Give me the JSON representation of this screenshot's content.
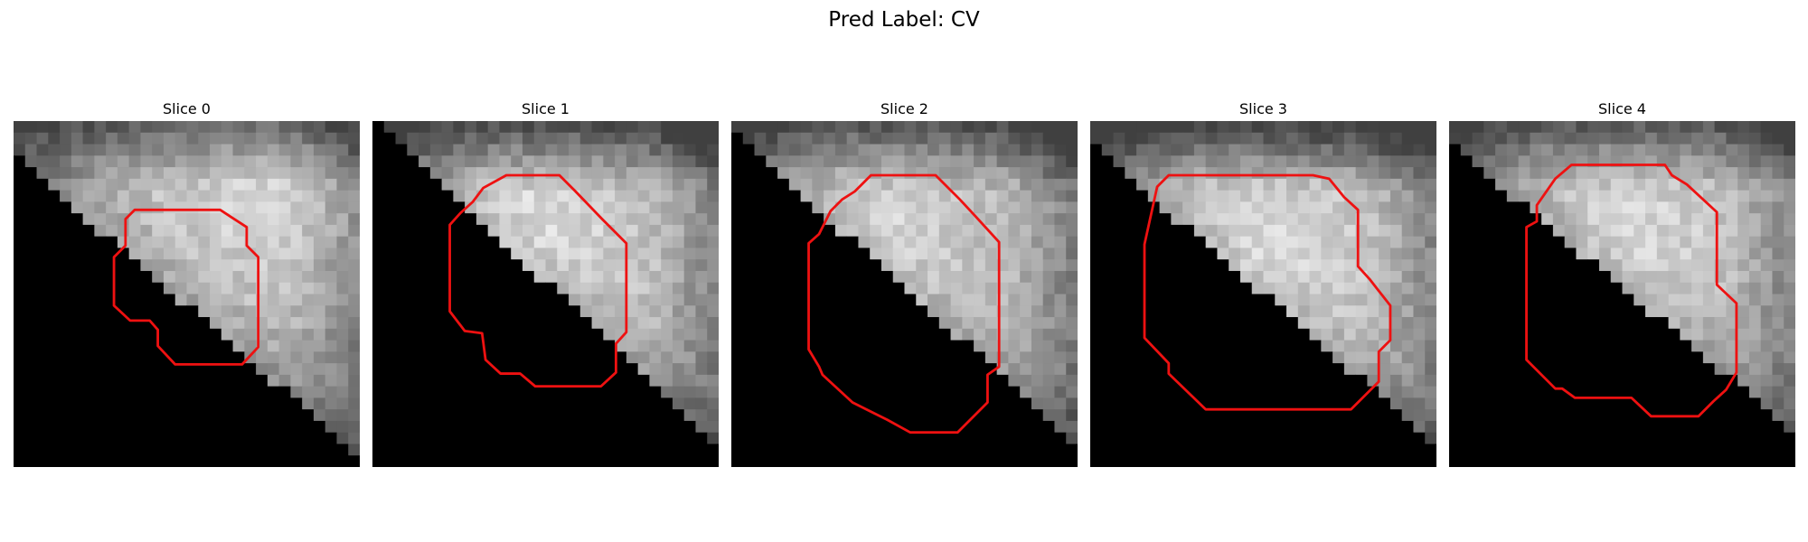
{
  "figure": {
    "title": "Pred Label: CV",
    "panels": [
      {
        "title": "Slice 0"
      },
      {
        "title": "Slice 1"
      },
      {
        "title": "Slice 2"
      },
      {
        "title": "Slice 3"
      },
      {
        "title": "Slice 4"
      }
    ]
  },
  "colors": {
    "contour": "#ee1111",
    "background": "#000000"
  }
}
